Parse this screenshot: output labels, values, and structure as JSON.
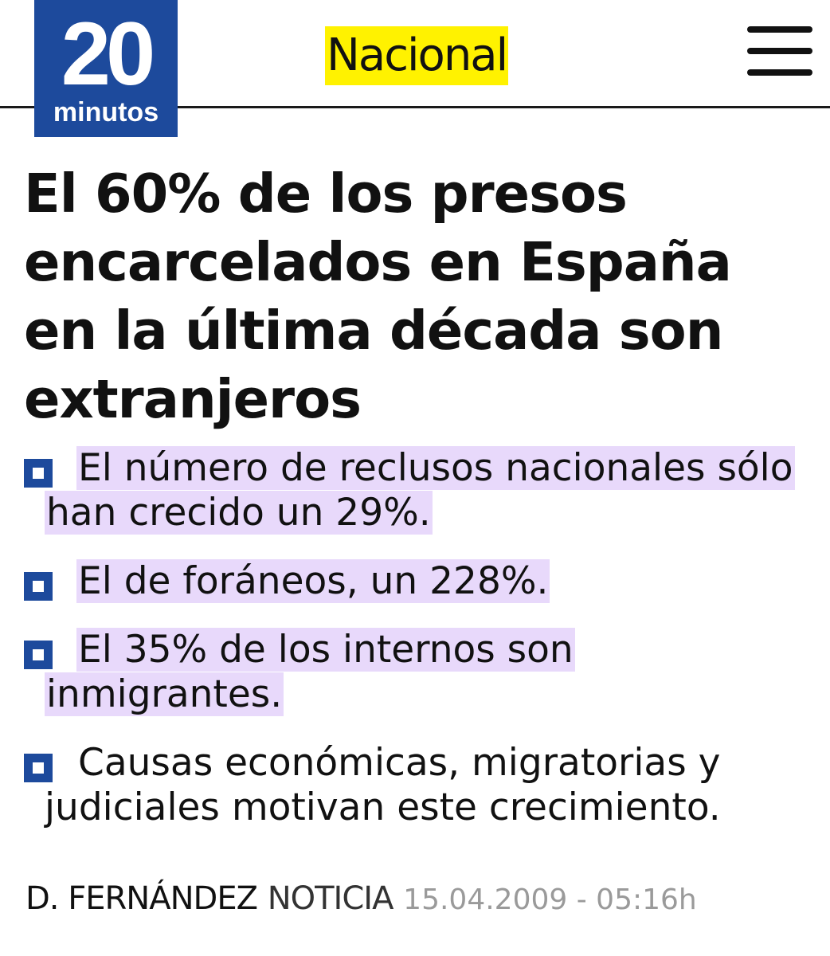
{
  "header": {
    "logo_number": "20",
    "logo_word": "minutos",
    "section": "Nacional",
    "menu_icon": "hamburger-menu-icon",
    "brand_color": "#1d4a9c",
    "section_highlight": "#fff200"
  },
  "article": {
    "headline": "El 60% de los presos encarcelados en España en la última década son extranjeros",
    "bullets": [
      {
        "text": "El número de reclusos nacionales sólo han crecido un 29%.",
        "highlighted": true
      },
      {
        "text": "El de foráneos, un 228%.",
        "highlighted": true
      },
      {
        "text": "El 35% de los internos son inmigrantes.",
        "highlighted": true
      },
      {
        "text": "Causas económicas, migratorias y judiciales motivan este crecimiento.",
        "highlighted": false
      }
    ],
    "highlight_color": "#e8d9fb"
  },
  "byline": {
    "author": "D. FERNÁNDEZ",
    "type": "NOTICIA",
    "date": "15.04.2009 - 05:16h"
  }
}
